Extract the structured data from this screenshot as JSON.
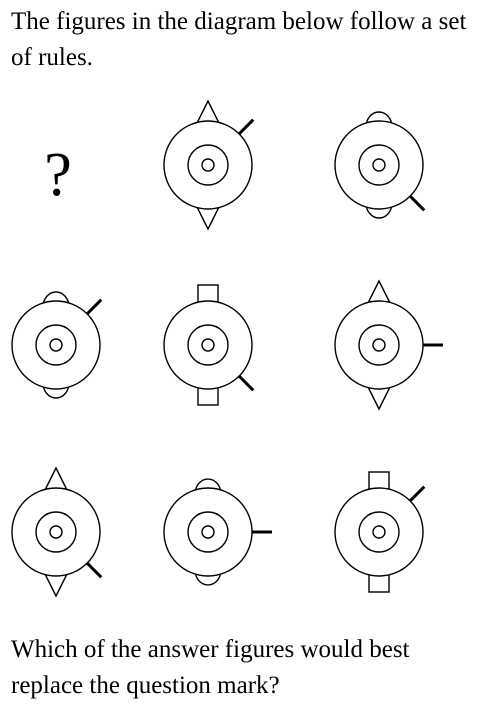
{
  "intro_text": "The figures in the diagram below follow a set of rules.",
  "prompt_text": "Which of the answer figures would best replace the question mark?",
  "missing_figure_symbol": "?",
  "stroke_color": "#000000",
  "fill_color": "#ffffff",
  "grid": {
    "rows": 3,
    "columns": 3,
    "cells": [
      {
        "row": 1,
        "col": 1,
        "missing": true
      },
      {
        "row": 1,
        "col": 2,
        "top": "triangle",
        "bottom": "triangle",
        "line": "upper-right"
      },
      {
        "row": 1,
        "col": 3,
        "top": "semicircle",
        "bottom": "semicircle",
        "line": "lower-right"
      },
      {
        "row": 2,
        "col": 1,
        "top": "semicircle",
        "bottom": "semicircle",
        "line": "upper-right"
      },
      {
        "row": 2,
        "col": 2,
        "top": "square",
        "bottom": "square",
        "line": "lower-right"
      },
      {
        "row": 2,
        "col": 3,
        "top": "triangle",
        "bottom": "triangle",
        "line": "right"
      },
      {
        "row": 3,
        "col": 1,
        "top": "triangle",
        "bottom": "triangle",
        "line": "lower-right"
      },
      {
        "row": 3,
        "col": 2,
        "top": "semicircle",
        "bottom": "semicircle",
        "line": "right"
      },
      {
        "row": 3,
        "col": 3,
        "top": "square",
        "bottom": "square",
        "line": "upper-right"
      }
    ]
  }
}
